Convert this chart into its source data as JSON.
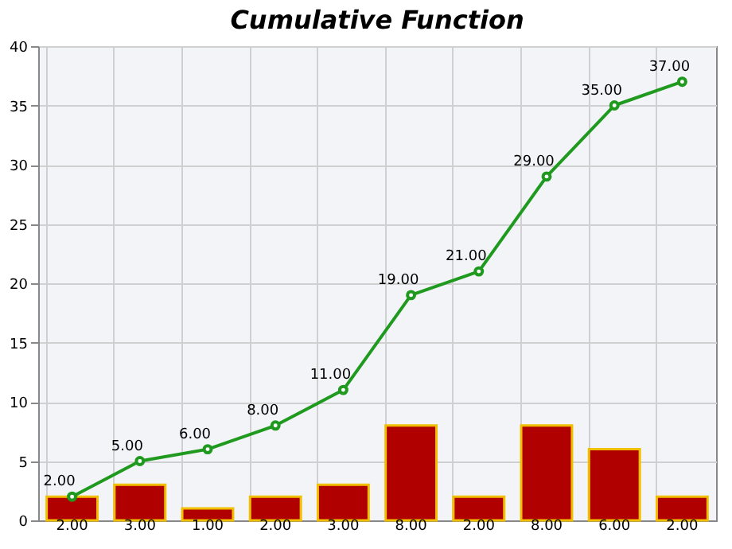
{
  "chart_data": {
    "type": "bar",
    "title": "Cumulative Function",
    "categories": [
      null,
      null,
      null,
      null,
      null,
      null,
      null,
      null,
      null,
      null
    ],
    "series": [
      {
        "color": "#b00000",
        "values": [
          2,
          3,
          1,
          2,
          3,
          8,
          2,
          8,
          6,
          2
        ],
        "value_labels": [
          "2.00",
          "3.00",
          "1.00",
          "2.00",
          "3.00",
          "8.00",
          "2.00",
          "8.00",
          "6.00",
          "2.00"
        ]
      },
      {
        "type": "line",
        "color": "#1f9a1f",
        "marker": "circle",
        "values": [
          2,
          5,
          6,
          8,
          11,
          19,
          21,
          29,
          35,
          37
        ],
        "value_labels": [
          "2.00",
          "5.00",
          "6.00",
          "8.00",
          "11.00",
          "19.00",
          "21.00",
          "29.00",
          "35.00",
          "37.00"
        ]
      }
    ],
    "ylim": [
      0,
      40
    ],
    "yticks": [
      0,
      5,
      10,
      15,
      20,
      25,
      30,
      35,
      40
    ],
    "grid": true,
    "tick_labels": "y"
  }
}
